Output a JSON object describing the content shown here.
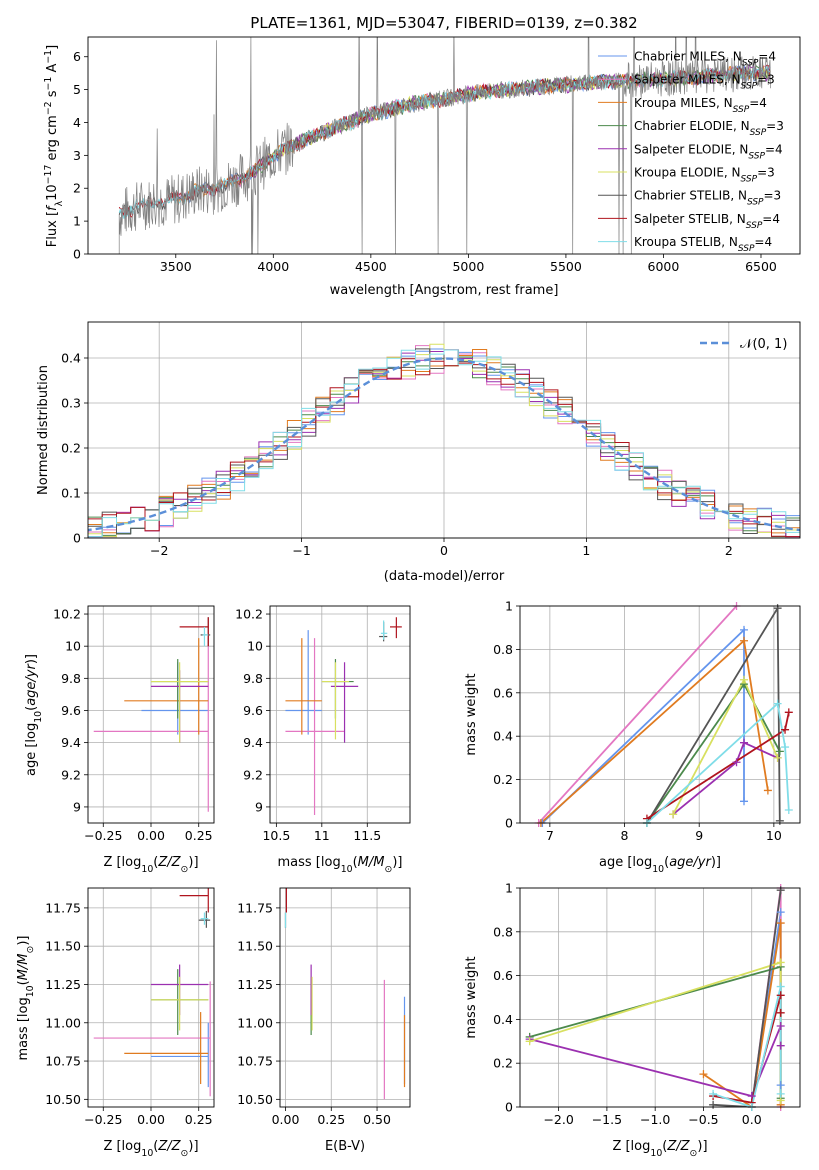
{
  "colors": {
    "chabrier_miles": "#6495ed",
    "salpeter_miles": "#e377c2",
    "kroupa_miles": "#e07b20",
    "chabrier_elodie": "#4c8a4c",
    "salpeter_elodie": "#9b30b0",
    "kroupa_elodie": "#d8e060",
    "chabrier_stelib": "#555555",
    "salpeter_stelib": "#b0141e",
    "kroupa_stelib": "#80dde8",
    "observed": "#808080",
    "normal": "#5b8fd8"
  },
  "chart_data": [
    {
      "id": "spectrum",
      "type": "line",
      "title": "PLATE=1361, MJD=53047, FIBERID=0139, z=0.382",
      "xlabel": "wavelength [Angstrom, rest frame]",
      "ylabel": "Flux [fλ10⁻¹⁷ erg cm⁻² s⁻¹ A⁻¹]",
      "xlim": [
        3050,
        6700
      ],
      "ylim": [
        0,
        6.6
      ],
      "xticks": [
        3500,
        4000,
        4500,
        5000,
        5500,
        6000,
        6500
      ],
      "yticks": [
        0,
        1,
        2,
        3,
        4,
        5,
        6
      ],
      "grid": false,
      "legend_position": "top-right",
      "observed_trend": {
        "x": [
          3210,
          3300,
          3400,
          3500,
          3600,
          3700,
          3800,
          3900,
          4000,
          4100,
          4300,
          4500,
          4700,
          4900,
          5100,
          5300,
          5500,
          5700,
          5900,
          6100,
          6300,
          6450,
          6550
        ],
        "y": [
          1.2,
          1.45,
          1.6,
          1.65,
          1.9,
          2.0,
          2.2,
          2.5,
          3.0,
          3.3,
          3.8,
          4.25,
          4.55,
          4.75,
          4.95,
          5.05,
          5.15,
          5.25,
          5.3,
          5.35,
          5.45,
          5.5,
          5.5
        ]
      },
      "series": [
        {
          "name": "Chabrier MILES, NSSP=4",
          "color_key": "chabrier_miles",
          "range": [
            3500,
            6550
          ]
        },
        {
          "name": "Salpeter MILES, NSSP=3",
          "color_key": "salpeter_miles",
          "range": [
            3500,
            6550
          ]
        },
        {
          "name": "Kroupa MILES, NSSP=4",
          "color_key": "kroupa_miles",
          "range": [
            3500,
            6550
          ]
        },
        {
          "name": "Chabrier ELODIE, NSSP=3",
          "color_key": "chabrier_elodie",
          "range": [
            3900,
            6550
          ]
        },
        {
          "name": "Salpeter ELODIE, NSSP=4",
          "color_key": "salpeter_elodie",
          "range": [
            3900,
            6550
          ]
        },
        {
          "name": "Kroupa ELODIE, NSSP=3",
          "color_key": "kroupa_elodie",
          "range": [
            3900,
            6550
          ]
        },
        {
          "name": "Chabrier STELIB, NSSP=3",
          "color_key": "chabrier_stelib",
          "range": [
            3210,
            6550
          ]
        },
        {
          "name": "Salpeter STELIB, NSSP=4",
          "color_key": "salpeter_stelib",
          "range": [
            3210,
            6550
          ]
        },
        {
          "name": "Kroupa STELIB, NSSP=4",
          "color_key": "kroupa_stelib",
          "range": [
            3210,
            6550
          ]
        }
      ]
    },
    {
      "id": "residuals",
      "type": "line",
      "xlabel": "(data-model)/error",
      "ylabel": "Normed distribution",
      "xlim": [
        -2.5,
        2.5
      ],
      "ylim": [
        0,
        0.48
      ],
      "xticks": [
        -2,
        -1,
        0,
        1,
        2
      ],
      "yticks": [
        0.0,
        0.1,
        0.2,
        0.3,
        0.4
      ],
      "grid": true,
      "legend_position": "top-right",
      "normal_label": "𝒩(0, 1)"
    },
    {
      "id": "age_vs_Z",
      "type": "scatter",
      "xlabel": "Z [log10(Z/Z⊙)]",
      "ylabel": "age  [log10(age/yr)]",
      "xlim": [
        -0.33,
        0.33
      ],
      "ylim": [
        8.9,
        10.25
      ],
      "xticks": [
        -0.25,
        0.0,
        0.25
      ],
      "xticklabels": [
        "−0.25",
        "0.00",
        "0.25"
      ],
      "yticks": [
        9.0,
        9.2,
        9.4,
        9.6,
        9.8,
        10.0,
        10.2
      ],
      "grid": true,
      "points": [
        {
          "c": "chabrier_miles",
          "x": 0.14,
          "xe": [
            -0.05,
            0.3
          ],
          "y": 9.6,
          "ye": [
            9.45,
            9.9
          ]
        },
        {
          "c": "salpeter_miles",
          "x": 0.3,
          "xe": [
            -0.3,
            0.3
          ],
          "y": 9.47,
          "ye": [
            8.97,
            10.05
          ]
        },
        {
          "c": "kroupa_miles",
          "x": 0.25,
          "xe": [
            -0.14,
            0.3
          ],
          "y": 9.66,
          "ye": [
            9.45,
            10.05
          ]
        },
        {
          "c": "chabrier_elodie",
          "x": 0.14,
          "xe": [
            0.0,
            0.3
          ],
          "y": 9.78,
          "ye": [
            9.55,
            9.92
          ]
        },
        {
          "c": "salpeter_elodie",
          "x": 0.15,
          "xe": [
            0.0,
            0.3
          ],
          "y": 9.75,
          "ye": [
            9.4,
            9.85
          ]
        },
        {
          "c": "kroupa_elodie",
          "x": 0.15,
          "xe": [
            0.0,
            0.3
          ],
          "y": 9.78,
          "ye": [
            9.4,
            9.9
          ]
        },
        {
          "c": "chabrier_stelib",
          "x": 0.3,
          "xe": [
            0.26,
            0.31
          ],
          "y": 10.07,
          "ye": [
            10.0,
            10.18
          ]
        },
        {
          "c": "salpeter_stelib",
          "x": 0.3,
          "xe": [
            0.15,
            0.3
          ],
          "y": 10.12,
          "ye": [
            10.0,
            10.18
          ]
        },
        {
          "c": "kroupa_stelib",
          "x": 0.28,
          "xe": [
            0.27,
            0.3
          ],
          "y": 10.07,
          "ye": [
            10.0,
            10.12
          ]
        }
      ]
    },
    {
      "id": "age_vs_mass",
      "type": "scatter",
      "xlabel": "mass [log10(M/M⊙)]",
      "ylabel": "",
      "xlim": [
        10.43,
        11.97
      ],
      "ylim": [
        8.9,
        10.25
      ],
      "xticks": [
        10.5,
        11.0,
        11.5
      ],
      "yticks": [
        9.0,
        9.2,
        9.4,
        9.6,
        9.8,
        10.0,
        10.2
      ],
      "grid": true,
      "points": [
        {
          "c": "chabrier_miles",
          "x": 10.85,
          "xe": [
            10.6,
            11.0
          ],
          "y": 9.6,
          "ye": [
            9.45,
            10.1
          ]
        },
        {
          "c": "salpeter_miles",
          "x": 10.92,
          "xe": [
            10.6,
            11.25
          ],
          "y": 9.47,
          "ye": [
            8.95,
            10.05
          ]
        },
        {
          "c": "kroupa_miles",
          "x": 10.78,
          "xe": [
            10.6,
            11.0
          ],
          "y": 9.66,
          "ye": [
            9.45,
            10.05
          ]
        },
        {
          "c": "chabrier_elodie",
          "x": 11.15,
          "xe": [
            11.0,
            11.35
          ],
          "y": 9.78,
          "ye": [
            9.55,
            9.92
          ]
        },
        {
          "c": "salpeter_elodie",
          "x": 11.25,
          "xe": [
            11.1,
            11.4
          ],
          "y": 9.75,
          "ye": [
            9.4,
            9.9
          ]
        },
        {
          "c": "kroupa_elodie",
          "x": 11.15,
          "xe": [
            11.0,
            11.3
          ],
          "y": 9.78,
          "ye": [
            9.42,
            9.9
          ]
        },
        {
          "c": "chabrier_stelib",
          "x": 11.68,
          "xe": [
            11.63,
            11.72
          ],
          "y": 10.06,
          "ye": [
            10.03,
            10.15
          ]
        },
        {
          "c": "salpeter_stelib",
          "x": 11.82,
          "xe": [
            11.75,
            11.88
          ],
          "y": 10.12,
          "ye": [
            10.05,
            10.18
          ]
        },
        {
          "c": "kroupa_stelib",
          "x": 11.68,
          "xe": [
            11.65,
            11.72
          ],
          "y": 10.08,
          "ye": [
            10.04,
            10.16
          ]
        }
      ]
    },
    {
      "id": "weight_vs_age",
      "type": "line",
      "xlabel": "age  [log10(age/yr)]",
      "ylabel": "mass weight",
      "xlim": [
        6.6,
        10.35
      ],
      "ylim": [
        0,
        1.0
      ],
      "xticks": [
        7,
        8,
        9,
        10
      ],
      "yticks": [
        0.0,
        0.2,
        0.4,
        0.6,
        0.8,
        1.0
      ],
      "grid": true,
      "series": [
        {
          "c": "chabrier_miles",
          "x": [
            6.9,
            9.6,
            9.6
          ],
          "y": [
            0.0,
            0.89,
            0.1
          ]
        },
        {
          "c": "salpeter_miles",
          "x": [
            6.85,
            9.5
          ],
          "y": [
            0.0,
            1.0
          ]
        },
        {
          "c": "kroupa_miles",
          "x": [
            6.88,
            9.6,
            9.92
          ],
          "y": [
            0.0,
            0.84,
            0.15
          ]
        },
        {
          "c": "chabrier_elodie",
          "x": [
            8.3,
            9.6,
            10.08
          ],
          "y": [
            0.0,
            0.64,
            0.33
          ]
        },
        {
          "c": "salpeter_elodie",
          "x": [
            8.65,
            9.5,
            9.6,
            10.05
          ],
          "y": [
            0.04,
            0.28,
            0.37,
            0.3
          ]
        },
        {
          "c": "kroupa_elodie",
          "x": [
            8.65,
            9.6,
            10.05
          ],
          "y": [
            0.04,
            0.66,
            0.3
          ]
        },
        {
          "c": "chabrier_stelib",
          "x": [
            8.3,
            10.05,
            10.08
          ],
          "y": [
            0.0,
            0.99,
            0.01
          ]
        },
        {
          "c": "salpeter_stelib",
          "x": [
            8.3,
            10.15,
            10.2
          ],
          "y": [
            0.02,
            0.43,
            0.51
          ]
        },
        {
          "c": "kroupa_stelib",
          "x": [
            8.3,
            10.05,
            10.15,
            10.2
          ],
          "y": [
            0.0,
            0.55,
            0.35,
            0.06
          ]
        }
      ]
    },
    {
      "id": "mass_vs_Z",
      "type": "scatter",
      "xlabel": "Z [log10(Z/Z⊙)]",
      "ylabel": "mass [log10(M/M⊙)]",
      "xlim": [
        -0.33,
        0.33
      ],
      "ylim": [
        10.45,
        11.88
      ],
      "xticks": [
        -0.25,
        0.0,
        0.25
      ],
      "xticklabels": [
        "−0.25",
        "0.00",
        "0.25"
      ],
      "yticks": [
        10.5,
        10.75,
        11.0,
        11.25,
        11.5,
        11.75
      ],
      "yticklabels": [
        "10.50",
        "10.75",
        "11.00",
        "11.25",
        "11.50",
        "11.75"
      ],
      "grid": true,
      "points": [
        {
          "c": "chabrier_miles",
          "x": 0.3,
          "xe": [
            0.0,
            0.3
          ],
          "y": 10.78,
          "ye": [
            10.58,
            11.0
          ]
        },
        {
          "c": "salpeter_miles",
          "x": 0.31,
          "xe": [
            -0.3,
            0.31
          ],
          "y": 10.9,
          "ye": [
            10.52,
            11.27
          ]
        },
        {
          "c": "kroupa_miles",
          "x": 0.26,
          "xe": [
            -0.14,
            0.3
          ],
          "y": 10.8,
          "ye": [
            10.6,
            11.07
          ]
        },
        {
          "c": "chabrier_elodie",
          "x": 0.14,
          "xe": [
            0.0,
            0.3
          ],
          "y": 11.15,
          "ye": [
            10.92,
            11.35
          ]
        },
        {
          "c": "salpeter_elodie",
          "x": 0.15,
          "xe": [
            0.0,
            0.3
          ],
          "y": 11.25,
          "ye": [
            11.05,
            11.38
          ]
        },
        {
          "c": "kroupa_elodie",
          "x": 0.15,
          "xe": [
            0.0,
            0.3
          ],
          "y": 11.15,
          "ye": [
            10.95,
            11.3
          ]
        },
        {
          "c": "chabrier_stelib",
          "x": 0.29,
          "xe": [
            0.25,
            0.31
          ],
          "y": 11.67,
          "ye": [
            11.62,
            11.73
          ]
        },
        {
          "c": "salpeter_stelib",
          "x": 0.3,
          "xe": [
            0.15,
            0.3
          ],
          "y": 11.83,
          "ye": [
            11.72,
            11.88
          ]
        },
        {
          "c": "kroupa_stelib",
          "x": 0.28,
          "xe": [
            0.26,
            0.3
          ],
          "y": 11.68,
          "ye": [
            11.64,
            11.72
          ]
        }
      ]
    },
    {
      "id": "mass_vs_ebv",
      "type": "scatter",
      "xlabel": "E(B-V)",
      "ylabel": "",
      "xlim": [
        -0.03,
        0.68
      ],
      "ylim": [
        10.45,
        11.88
      ],
      "xticks": [
        0.0,
        0.25,
        0.5
      ],
      "xticklabels": [
        "0.00",
        "0.25",
        "0.50"
      ],
      "yticks": [
        10.5,
        10.75,
        11.0,
        11.25,
        11.5,
        11.75
      ],
      "yticklabels": [
        "10.50",
        "10.75",
        "11.00",
        "11.25",
        "11.50",
        "11.75"
      ],
      "grid": true,
      "points": [
        {
          "c": "chabrier_miles",
          "x": 0.65,
          "y": 10.78,
          "ye": [
            10.6,
            11.17
          ]
        },
        {
          "c": "salpeter_miles",
          "x": 0.54,
          "y": 10.9,
          "ye": [
            10.5,
            11.28
          ]
        },
        {
          "c": "kroupa_miles",
          "x": 0.65,
          "y": 10.8,
          "ye": [
            10.58,
            11.05
          ]
        },
        {
          "c": "chabrier_elodie",
          "x": 0.14,
          "y": 11.15,
          "ye": [
            10.92,
            11.3
          ]
        },
        {
          "c": "salpeter_elodie",
          "x": 0.14,
          "y": 11.25,
          "ye": [
            11.05,
            11.38
          ]
        },
        {
          "c": "kroupa_elodie",
          "x": 0.145,
          "y": 11.15,
          "ye": [
            10.95,
            11.3
          ]
        },
        {
          "c": "chabrier_stelib",
          "x": 0.0,
          "y": 11.67,
          "ye": [
            11.62,
            11.72
          ]
        },
        {
          "c": "salpeter_stelib",
          "x": 0.005,
          "y": 11.83,
          "ye": [
            11.72,
            11.88
          ]
        },
        {
          "c": "kroupa_stelib",
          "x": 0.0,
          "y": 11.68,
          "ye": [
            11.62,
            11.72
          ]
        }
      ]
    },
    {
      "id": "weight_vs_Z",
      "type": "line",
      "xlabel": "Z [log10(Z/Z⊙)]",
      "ylabel": "mass weight",
      "xlim": [
        -2.4,
        0.5
      ],
      "ylim": [
        0,
        1.0
      ],
      "xticks": [
        -2.0,
        -1.5,
        -1.0,
        -0.5,
        0.0
      ],
      "xticklabels": [
        "−2.0",
        "−1.5",
        "−1.0",
        "−0.5",
        "0.0"
      ],
      "yticks": [
        0.0,
        0.2,
        0.4,
        0.6,
        0.8,
        1.0
      ],
      "grid": true,
      "series": [
        {
          "c": "chabrier_miles",
          "x": [
            0.0,
            0.3,
            0.3
          ],
          "y": [
            0.0,
            0.89,
            0.1
          ]
        },
        {
          "c": "salpeter_miles",
          "x": [
            0.0,
            0.3,
            0.3
          ],
          "y": [
            0.0,
            1.0,
            0.0
          ]
        },
        {
          "c": "kroupa_miles",
          "x": [
            -0.5,
            0.0,
            0.3,
            0.3
          ],
          "y": [
            0.15,
            0.0,
            0.84,
            0.01
          ]
        },
        {
          "c": "chabrier_elodie",
          "x": [
            -2.3,
            0.3,
            0.3
          ],
          "y": [
            0.32,
            0.64,
            0.04
          ]
        },
        {
          "c": "salpeter_elodie",
          "x": [
            -2.3,
            0.0,
            0.3,
            0.3
          ],
          "y": [
            0.31,
            0.05,
            0.37,
            0.28
          ]
        },
        {
          "c": "kroupa_elodie",
          "x": [
            -2.3,
            0.3,
            0.3
          ],
          "y": [
            0.3,
            0.66,
            0.03
          ]
        },
        {
          "c": "chabrier_stelib",
          "x": [
            -0.4,
            0.0,
            0.3
          ],
          "y": [
            0.01,
            0.0,
            0.99
          ]
        },
        {
          "c": "salpeter_stelib",
          "x": [
            -0.4,
            0.0,
            0.3,
            0.3
          ],
          "y": [
            0.05,
            0.02,
            0.51,
            0.43
          ]
        },
        {
          "c": "kroupa_stelib",
          "x": [
            -0.4,
            0.0,
            0.3,
            0.3
          ],
          "y": [
            0.06,
            0.0,
            0.55,
            0.06
          ]
        }
      ]
    }
  ]
}
